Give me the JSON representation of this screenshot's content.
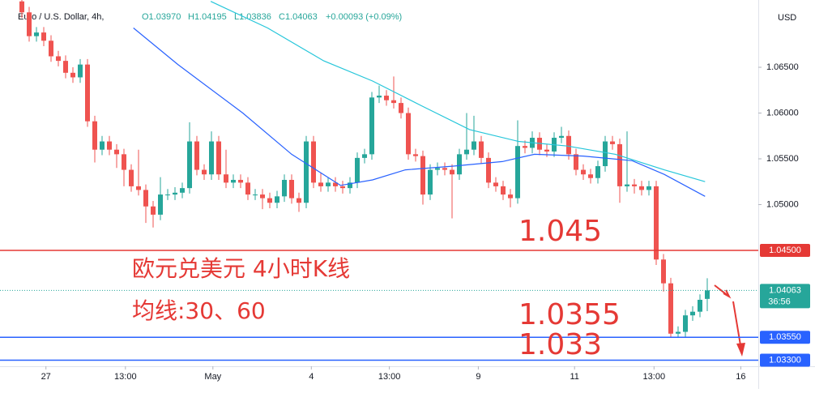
{
  "chart_data": {
    "type": "candlestick",
    "header": {
      "symbol": "Euro / U.S. Dollar, 4h,",
      "open": "O1.03970",
      "high": "H1.04195",
      "low": "L1.03836",
      "close": "C1.04063",
      "change": "+0.00093 (+0.09%)"
    },
    "currency": "USD",
    "up_color": "#26a69a",
    "down_color": "#ef5350",
    "xlim": [
      -3,
      101
    ],
    "xticks": [
      {
        "value": 3.3,
        "label": "27"
      },
      {
        "value": 14.2,
        "label": "13:00"
      },
      {
        "value": 26.2,
        "label": "May"
      },
      {
        "value": 39.7,
        "label": "4"
      },
      {
        "value": 50.4,
        "label": "13:00"
      },
      {
        "value": 62.6,
        "label": "9"
      },
      {
        "value": 75.8,
        "label": "11"
      },
      {
        "value": 86.7,
        "label": "13:00"
      },
      {
        "value": 98.6,
        "label": "16"
      }
    ],
    "ylim": [
      1.03234,
      1.07235
    ],
    "yticks": [
      {
        "value": 1.05,
        "label": "1.05000"
      },
      {
        "value": 1.055,
        "label": "1.05500"
      },
      {
        "value": 1.06,
        "label": "1.06000"
      },
      {
        "value": 1.065,
        "label": "1.06500"
      }
    ],
    "grid": false,
    "candles": [
      [
        1.0722,
        1.0728,
        1.0704,
        1.071
      ],
      [
        1.071,
        1.0716,
        1.0678,
        1.0684
      ],
      [
        1.0684,
        1.0694,
        1.0678,
        1.0688
      ],
      [
        1.0688,
        1.0694,
        1.0673,
        1.0679
      ],
      [
        1.0679,
        1.0685,
        1.0656,
        1.0662
      ],
      [
        1.0662,
        1.0668,
        1.0651,
        1.0657
      ],
      [
        1.0657,
        1.0663,
        1.0638,
        1.0644
      ],
      [
        1.0644,
        1.065,
        1.0633,
        1.0639
      ],
      [
        1.0639,
        1.0659,
        1.0633,
        1.0653
      ],
      [
        1.0653,
        1.0659,
        1.0585,
        1.0591
      ],
      [
        1.0591,
        1.0597,
        1.0546,
        1.056
      ],
      [
        1.056,
        1.0575,
        1.0554,
        1.0569
      ],
      [
        1.0569,
        1.0575,
        1.0554,
        1.056
      ],
      [
        1.056,
        1.0566,
        1.054,
        1.0555
      ],
      [
        1.0555,
        1.0561,
        1.052,
        1.0538
      ],
      [
        1.0538,
        1.0544,
        1.0514,
        1.052
      ],
      [
        1.052,
        1.056,
        1.051,
        1.0516
      ],
      [
        1.0516,
        1.0522,
        1.048,
        1.0498
      ],
      [
        1.0498,
        1.0504,
        1.0475,
        1.0489
      ],
      [
        1.0489,
        1.053,
        1.0483,
        1.0511
      ],
      [
        1.0511,
        1.0517,
        1.0505,
        1.0511
      ],
      [
        1.0511,
        1.0519,
        1.0505,
        1.0513
      ],
      [
        1.0513,
        1.0524,
        1.0507,
        1.0518
      ],
      [
        1.0518,
        1.059,
        1.0512,
        1.0569
      ],
      [
        1.0569,
        1.0575,
        1.0532,
        1.0538
      ],
      [
        1.0538,
        1.0544,
        1.0527,
        1.0533
      ],
      [
        1.0533,
        1.058,
        1.0527,
        1.0569
      ],
      [
        1.0569,
        1.0575,
        1.0527,
        1.0533
      ],
      [
        1.0533,
        1.056,
        1.0518,
        1.0524
      ],
      [
        1.0524,
        1.0533,
        1.0518,
        1.0527
      ],
      [
        1.0527,
        1.0533,
        1.0518,
        1.0524
      ],
      [
        1.0524,
        1.053,
        1.0505,
        1.0511
      ],
      [
        1.0511,
        1.0517,
        1.0505,
        1.0511
      ],
      [
        1.0511,
        1.0517,
        1.0495,
        1.0507
      ],
      [
        1.0507,
        1.0513,
        1.0496,
        1.0502
      ],
      [
        1.0502,
        1.0515,
        1.0496,
        1.0509
      ],
      [
        1.0509,
        1.0533,
        1.0503,
        1.0527
      ],
      [
        1.0527,
        1.0533,
        1.0501,
        1.0507
      ],
      [
        1.0507,
        1.0513,
        1.0492,
        1.0502
      ],
      [
        1.0502,
        1.0575,
        1.0496,
        1.0569
      ],
      [
        1.0569,
        1.0575,
        1.0518,
        1.0524
      ],
      [
        1.0524,
        1.0535,
        1.0514,
        1.052
      ],
      [
        1.052,
        1.053,
        1.0514,
        1.0524
      ],
      [
        1.0524,
        1.053,
        1.0514,
        1.052
      ],
      [
        1.052,
        1.0526,
        1.0512,
        1.0518
      ],
      [
        1.0518,
        1.053,
        1.0512,
        1.0524
      ],
      [
        1.0524,
        1.0557,
        1.0518,
        1.0551
      ],
      [
        1.0551,
        1.0561,
        1.0545,
        1.0555
      ],
      [
        1.0555,
        1.0623,
        1.0549,
        1.0617
      ],
      [
        1.0617,
        1.063,
        1.0611,
        1.0619
      ],
      [
        1.0619,
        1.0625,
        1.0608,
        1.0614
      ],
      [
        1.0614,
        1.064,
        1.0605,
        1.0611
      ],
      [
        1.0611,
        1.0617,
        1.0594,
        1.06
      ],
      [
        1.06,
        1.0606,
        1.0549,
        1.0555
      ],
      [
        1.0555,
        1.0561,
        1.0547,
        1.0553
      ],
      [
        1.0553,
        1.0559,
        1.05,
        1.0511
      ],
      [
        1.0511,
        1.0544,
        1.0505,
        1.0538
      ],
      [
        1.0538,
        1.0546,
        1.0532,
        1.054
      ],
      [
        1.054,
        1.0546,
        1.0532,
        1.0538
      ],
      [
        1.0538,
        1.0544,
        1.0485,
        1.0533
      ],
      [
        1.0533,
        1.0561,
        1.0527,
        1.0555
      ],
      [
        1.0555,
        1.06,
        1.0549,
        1.056
      ],
      [
        1.056,
        1.0597,
        1.0554,
        1.0569
      ],
      [
        1.0569,
        1.0575,
        1.0545,
        1.0551
      ],
      [
        1.0551,
        1.0557,
        1.0518,
        1.0524
      ],
      [
        1.0524,
        1.053,
        1.0514,
        1.052
      ],
      [
        1.052,
        1.0526,
        1.0505,
        1.0511
      ],
      [
        1.0511,
        1.0517,
        1.0497,
        1.0507
      ],
      [
        1.0507,
        1.0592,
        1.0501,
        1.0564
      ],
      [
        1.0564,
        1.057,
        1.0556,
        1.0562
      ],
      [
        1.0562,
        1.058,
        1.0556,
        1.0573
      ],
      [
        1.0573,
        1.0579,
        1.0554,
        1.056
      ],
      [
        1.056,
        1.0566,
        1.0552,
        1.0558
      ],
      [
        1.0558,
        1.0579,
        1.0552,
        1.0573
      ],
      [
        1.0573,
        1.0585,
        1.0567,
        1.0575
      ],
      [
        1.0575,
        1.0581,
        1.0549,
        1.0555
      ],
      [
        1.0555,
        1.0561,
        1.0532,
        1.0538
      ],
      [
        1.0538,
        1.0544,
        1.0527,
        1.0533
      ],
      [
        1.0533,
        1.0539,
        1.0523,
        1.0529
      ],
      [
        1.0529,
        1.0548,
        1.0523,
        1.0542
      ],
      [
        1.0542,
        1.0575,
        1.0536,
        1.0569
      ],
      [
        1.0569,
        1.0575,
        1.056,
        1.0566
      ],
      [
        1.0566,
        1.0572,
        1.0502,
        1.052
      ],
      [
        1.052,
        1.058,
        1.0514,
        1.0522
      ],
      [
        1.0522,
        1.0528,
        1.0512,
        1.052
      ],
      [
        1.052,
        1.0526,
        1.051,
        1.0516
      ],
      [
        1.0516,
        1.0526,
        1.051,
        1.052
      ],
      [
        1.052,
        1.0526,
        1.0434,
        1.044
      ],
      [
        1.044,
        1.0446,
        1.0405,
        1.0414
      ],
      [
        1.0414,
        1.042,
        1.0355,
        1.0359
      ],
      [
        1.0359,
        1.0367,
        1.0355,
        1.0361
      ],
      [
        1.0361,
        1.0385,
        1.0355,
        1.0379
      ],
      [
        1.0379,
        1.0389,
        1.0373,
        1.0383
      ],
      [
        1.0383,
        1.0402,
        1.0377,
        1.0396
      ],
      [
        1.0397,
        1.04195,
        1.03836,
        1.04063
      ]
    ],
    "series": [
      {
        "color": "#2962ff",
        "x": [
          15.3,
          21.4,
          30.3,
          37,
          43.7,
          48.1,
          52.6,
          59.2,
          65.9,
          70.3,
          77,
          83.7,
          88.1,
          93.7
        ],
        "values": [
          1.0693,
          1.0653,
          1.06,
          1.0555,
          1.0521,
          1.0527,
          1.0538,
          1.0542,
          1.0547,
          1.0555,
          1.0553,
          1.0548,
          1.0533,
          1.0509
        ]
      },
      {
        "color": "#26c6da",
        "x": [
          25.9,
          33.7,
          41.4,
          48.1,
          54.8,
          61.4,
          68.1,
          74.8,
          81.4,
          88.1,
          93.7
        ],
        "values": [
          1.0722,
          1.0693,
          1.0657,
          1.0635,
          1.0608,
          1.0582,
          1.0569,
          1.0564,
          1.0555,
          1.0538,
          1.0525
        ]
      }
    ],
    "levels": [
      {
        "value": 1.045,
        "label": "1.04500",
        "color": "#e53935"
      },
      {
        "value": 1.0355,
        "label": "1.03550",
        "color": "#2962ff"
      },
      {
        "value": 1.033,
        "label": "1.03300",
        "color": "#2962ff"
      }
    ],
    "last_price": {
      "value": 1.04063,
      "label": "1.04063",
      "countdown": "36:56"
    },
    "annotations": [
      "1.045",
      "欧元兑美元 4小时K线",
      "均线:30、60",
      "1.0355",
      "1.033"
    ]
  }
}
